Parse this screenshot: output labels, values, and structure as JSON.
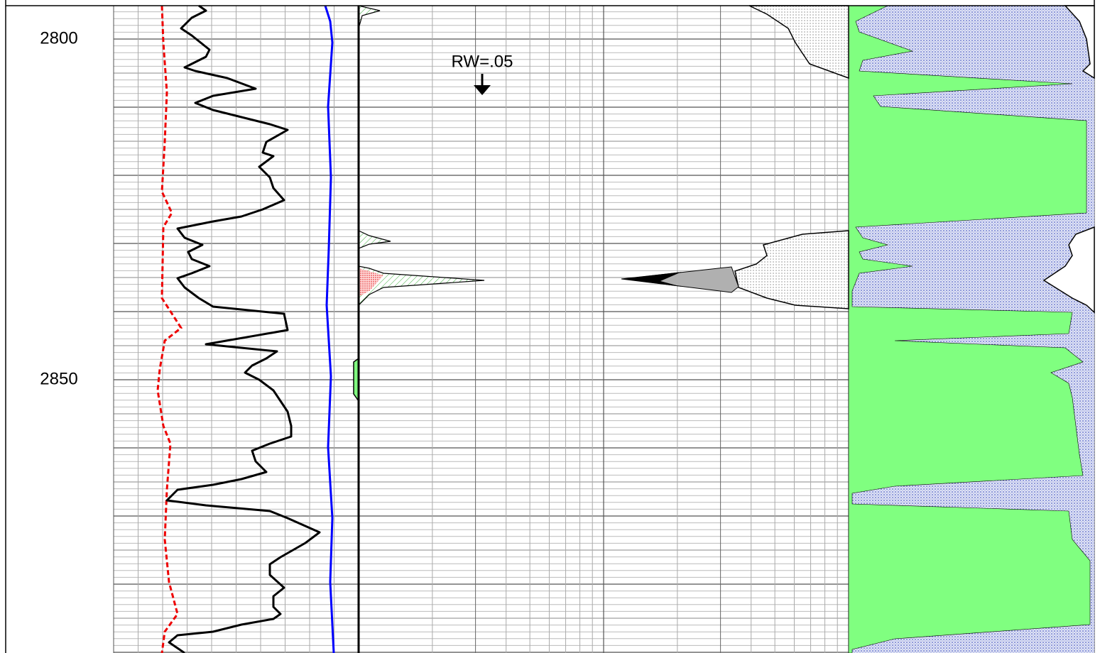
{
  "depth_labels": [
    "2800",
    "2850"
  ],
  "annotation": "RW=.05"
}
